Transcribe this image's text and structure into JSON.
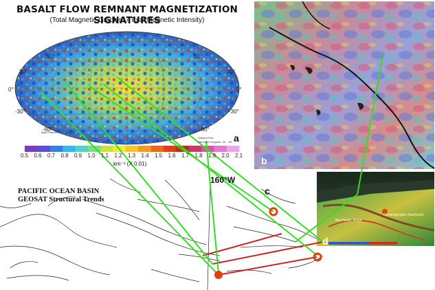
{
  "figure": {
    "title": "BASALT FLOW REMNANT MAGNETIZATION SIGNATURES",
    "subtitle": "(Total Magnetic Gradient / Total Magnetic Intensity)"
  },
  "panel_a": {
    "letter": "a",
    "latitude_labels": [
      "60°",
      "30°",
      "0°",
      "-30°",
      "-60°"
    ],
    "colorbar_ticks": [
      "0.5",
      "0.6",
      "0.7",
      "0.8",
      "0.9",
      "1.0",
      "1.1",
      "1.2",
      "1.3",
      "1.4",
      "1.5",
      "1.6",
      "1.7",
      "1.8",
      "1.9",
      "2.0",
      "2.1"
    ],
    "colorbar_unit": "km⁻¹ (X 0.01)",
    "colorbar_colors": [
      "#7a3fb5",
      "#5a4fd0",
      "#3a7fe0",
      "#39b6e8",
      "#55d0c8",
      "#7fd98a",
      "#c5e04a",
      "#f0e840",
      "#f5c530",
      "#f29a28",
      "#e86a20",
      "#d84418",
      "#c42a1a",
      "#c43a6a",
      "#d25aa8",
      "#de7cd0",
      "#e8a8e8"
    ],
    "map_notes": "Map Projection : Mollweide",
    "harmonic_notes": "Harmonic Degrees: 30 ~ 80",
    "hotspot_label": "Hotspot Size"
  },
  "panel_b": {
    "letter": "b"
  },
  "panel_c": {
    "letter": "c",
    "title_line1": "PACIFIC OCEAN BASIN",
    "title_line2": "GEOSAT Structural Trends",
    "meridian_label": "160°W"
  },
  "panel_d": {
    "letter": "d",
    "label1": "Oceanographic Seamount",
    "label2": "Mid Pacific Ridge"
  },
  "colors": {
    "connector": "#33dd22",
    "ridge_line": "#cc2222",
    "marker": "#e04010"
  }
}
